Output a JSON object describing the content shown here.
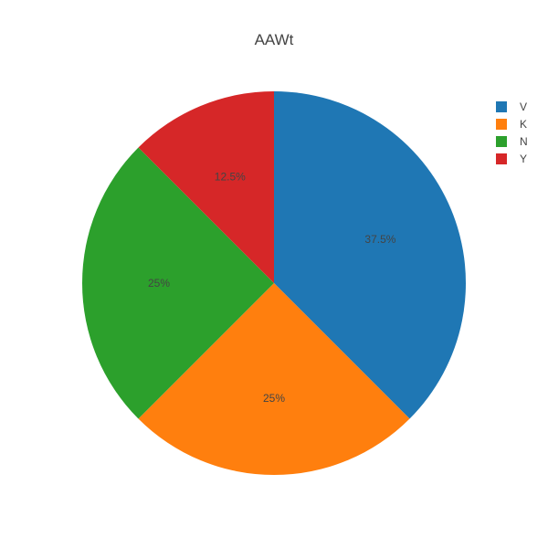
{
  "chart_data": {
    "type": "pie",
    "title": "AAWt",
    "labels": [
      "V",
      "K",
      "N",
      "Y"
    ],
    "values": [
      37.5,
      25,
      25,
      12.5
    ],
    "value_labels": [
      "37.5%",
      "25%",
      "25%",
      "12.5%"
    ],
    "colors": [
      "#1f77b4",
      "#ff7f0e",
      "#2ca02c",
      "#d62728"
    ],
    "legend_order": [
      "V",
      "K",
      "N",
      "Y"
    ],
    "legend_colors": [
      "#1f77b4",
      "#ff7f0e",
      "#2ca02c",
      "#d62728"
    ],
    "legend_position": "top-right",
    "direction": "clockwise"
  }
}
